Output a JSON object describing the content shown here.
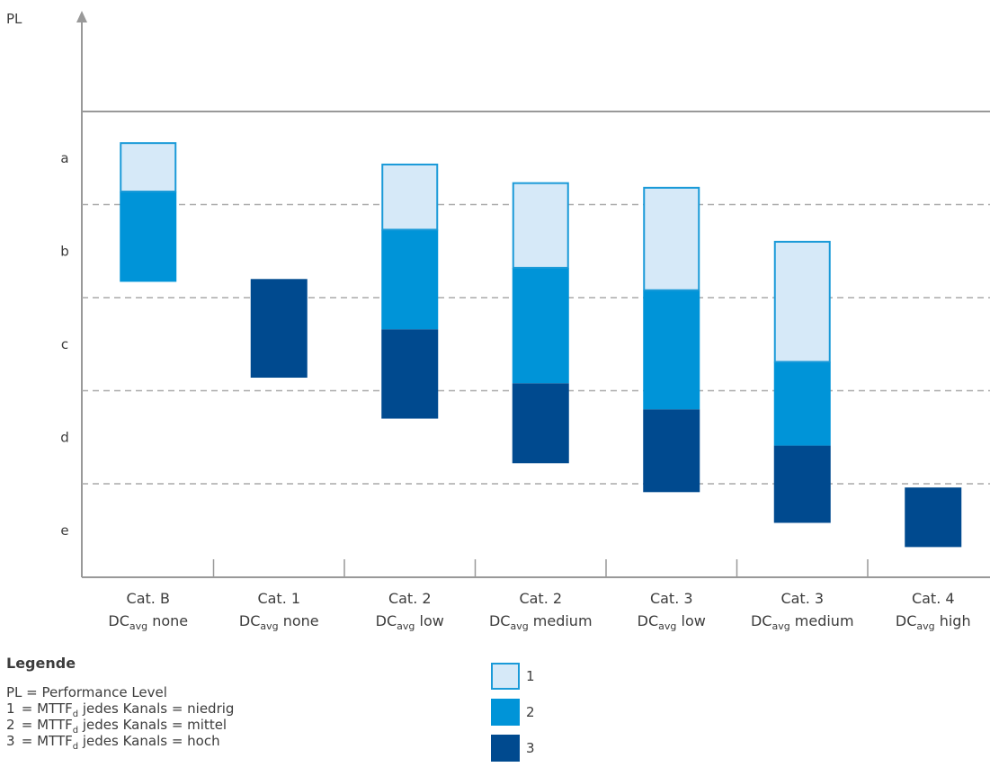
{
  "colors": {
    "low": "#d6e9f8",
    "low_border": "#1a9ad8",
    "mid": "#0094d8",
    "high": "#004a8f",
    "axis": "#999999",
    "grid": "#aaaaaa",
    "text": "#3c3c3c"
  },
  "chart_data": {
    "type": "bar",
    "ylabel": "PL",
    "y_levels": [
      "a",
      "b",
      "c",
      "d",
      "e"
    ],
    "grid": "dashed horizontal lines at level boundaries",
    "categories": [
      {
        "line1": "Cat. B",
        "dc_main": "DC",
        "dc_sub": "avg",
        "dc_rest": " none"
      },
      {
        "line1": "Cat. 1",
        "dc_main": "DC",
        "dc_sub": "avg",
        "dc_rest": " none"
      },
      {
        "line1": "Cat. 2",
        "dc_main": "DC",
        "dc_sub": "avg",
        "dc_rest": " low"
      },
      {
        "line1": "Cat. 2",
        "dc_main": "DC",
        "dc_sub": "avg",
        "dc_rest": " medium"
      },
      {
        "line1": "Cat. 3",
        "dc_main": "DC",
        "dc_sub": "avg",
        "dc_rest": " low"
      },
      {
        "line1": "Cat. 3",
        "dc_main": "DC",
        "dc_sub": "avg",
        "dc_rest": " medium"
      },
      {
        "line1": "Cat. 4",
        "dc_main": "DC",
        "dc_sub": "avg",
        "dc_rest": " high"
      }
    ],
    "segments_note": "Ranges on the PL scale: 0 = top of level a, 5 = bottom of level e",
    "bars": [
      {
        "low": [
          0.33,
          0.86
        ],
        "mid": [
          0.86,
          1.83
        ],
        "high": null
      },
      {
        "low": null,
        "mid": null,
        "high": [
          1.8,
          2.86
        ]
      },
      {
        "low": [
          0.56,
          1.27
        ],
        "mid": [
          1.27,
          2.34
        ],
        "high": [
          2.34,
          3.3
        ]
      },
      {
        "low": [
          0.76,
          1.68
        ],
        "mid": [
          1.68,
          2.92
        ],
        "high": [
          2.92,
          3.78
        ]
      },
      {
        "low": [
          0.81,
          1.92
        ],
        "mid": [
          1.92,
          3.2
        ],
        "high": [
          3.2,
          4.09
        ]
      },
      {
        "low": [
          1.39,
          2.69
        ],
        "mid": [
          2.69,
          3.59
        ],
        "high": [
          3.59,
          4.42
        ]
      },
      {
        "low": null,
        "mid": null,
        "high": [
          4.04,
          4.68
        ]
      }
    ]
  },
  "legend": {
    "title": "Legende",
    "lines": [
      {
        "key": "PL",
        "sep": " = ",
        "pre": "Performance Level",
        "sub": "",
        "post": ""
      },
      {
        "key": "1",
        "sep": " = ",
        "pre": "MTTF",
        "sub": "d",
        "post": " jedes Kanals = niedrig"
      },
      {
        "key": "2",
        "sep": " = ",
        "pre": "MTTF",
        "sub": "d",
        "post": " jedes Kanals = mittel"
      },
      {
        "key": "3",
        "sep": " = ",
        "pre": "MTTF",
        "sub": "d",
        "post": " jedes Kanals = hoch"
      }
    ],
    "swatches": [
      {
        "label": "1",
        "color": "low"
      },
      {
        "label": "2",
        "color": "mid"
      },
      {
        "label": "3",
        "color": "high"
      }
    ]
  }
}
